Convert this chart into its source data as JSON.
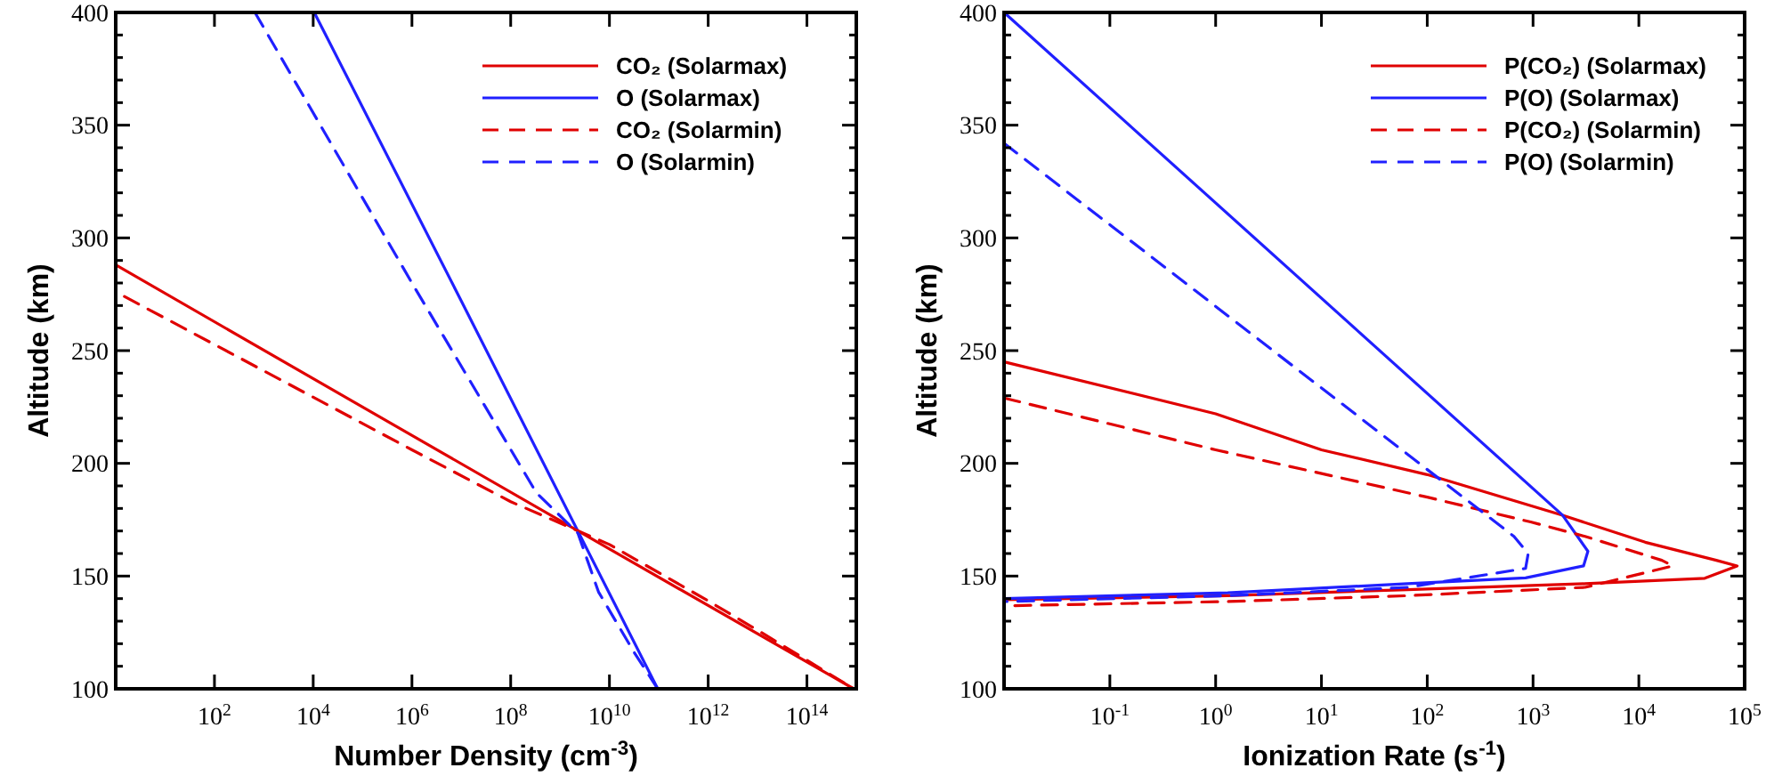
{
  "chart_data": [
    {
      "type": "line",
      "xlabel": "Number Density (cm$^{-3}$)",
      "ylabel": "Altitude (km)",
      "log": "x",
      "legend": "top right",
      "grid": false,
      "xlim": [
        1,
        1000000000000000.0
      ],
      "ylim": [
        100,
        400
      ],
      "xticks": [
        {
          "value": 100,
          "label": "10$^{2}$"
        },
        {
          "value": 10000,
          "label": "10$^{4}$"
        },
        {
          "value": 1000000,
          "label": "10$^{6}$"
        },
        {
          "value": 100000000,
          "label": "10$^{8}$"
        },
        {
          "value": 10000000000,
          "label": "10$^{10}$"
        },
        {
          "value": 1000000000000,
          "label": "10$^{12}$"
        },
        {
          "value": 100000000000000,
          "label": "10$^{14}$"
        }
      ],
      "yticks": [
        100,
        {
          "value": 110,
          "label": null
        },
        {
          "value": 120,
          "label": null
        },
        {
          "value": 130,
          "label": null
        },
        {
          "value": 140,
          "label": null
        },
        150,
        {
          "value": 160,
          "label": null
        },
        {
          "value": 170,
          "label": null
        },
        {
          "value": 180,
          "label": null
        },
        {
          "value": 190,
          "label": null
        },
        200,
        {
          "value": 210,
          "label": null
        },
        {
          "value": 220,
          "label": null
        },
        {
          "value": 230,
          "label": null
        },
        {
          "value": 240,
          "label": null
        },
        250,
        {
          "value": 260,
          "label": null
        },
        {
          "value": 270,
          "label": null
        },
        {
          "value": 280,
          "label": null
        },
        {
          "value": 290,
          "label": null
        },
        300,
        {
          "value": 310,
          "label": null
        },
        {
          "value": 320,
          "label": null
        },
        {
          "value": 330,
          "label": null
        },
        {
          "value": 340,
          "label": null
        },
        350,
        {
          "value": 360,
          "label": null
        },
        {
          "value": 370,
          "label": null
        },
        {
          "value": 380,
          "label": null
        },
        {
          "value": 390,
          "label": null
        },
        400
      ],
      "series": [
        {
          "name": "CO₂ (Solarmax)",
          "color": "#e00000",
          "line_style": "solid",
          "x": [
            1,
            100000,
            10000000000,
            890000000000000
          ],
          "values": [
            288,
            225,
            162,
            100
          ]
        },
        {
          "name": "O (Solarmax)",
          "color": "#2020ff",
          "line_style": "solid",
          "x": [
            10500,
            10000000,
            95000000000
          ],
          "values": [
            400,
            272,
            100
          ]
        },
        {
          "name": "CO₂ (Solarmin)",
          "color": "#e00000",
          "line_style": "dashed",
          "x": [
            1.5,
            1000000,
            100000000,
            10000000000,
            1000000000000,
            10000000000000,
            890000000000000
          ],
          "values": [
            274,
            206,
            183,
            164,
            139,
            126,
            100
          ]
        },
        {
          "name": "O (Solarmin)",
          "color": "#2020ff",
          "line_style": "dashed",
          "x": [
            660,
            1000000,
            330000000,
            2300000000,
            6000000000,
            32000000000,
            95000000000
          ],
          "values": [
            400,
            280,
            187,
            169,
            143,
            116,
            100
          ]
        }
      ]
    },
    {
      "type": "line",
      "xlabel": "Ionization Rate (s$^{-1}$)",
      "ylabel": "Altitude (km)",
      "log": "x",
      "legend": "top right",
      "grid": false,
      "xlim": [
        0.01,
        100000
      ],
      "ylim": [
        100,
        400
      ],
      "xticks": [
        {
          "value": 0.1,
          "label": "10$^{-1}$"
        },
        {
          "value": 1,
          "label": "10$^{0}$"
        },
        {
          "value": 10,
          "label": "10$^{1}$"
        },
        {
          "value": 100,
          "label": "10$^{2}$"
        },
        {
          "value": 1000,
          "label": "10$^{3}$"
        },
        {
          "value": 10000,
          "label": "10$^{4}$"
        },
        {
          "value": 100000,
          "label": "10$^{5}$"
        }
      ],
      "yticks": [
        100,
        {
          "value": 110,
          "label": null
        },
        {
          "value": 120,
          "label": null
        },
        {
          "value": 130,
          "label": null
        },
        {
          "value": 140,
          "label": null
        },
        150,
        {
          "value": 160,
          "label": null
        },
        {
          "value": 170,
          "label": null
        },
        {
          "value": 180,
          "label": null
        },
        {
          "value": 190,
          "label": null
        },
        200,
        {
          "value": 210,
          "label": null
        },
        {
          "value": 220,
          "label": null
        },
        {
          "value": 230,
          "label": null
        },
        {
          "value": 240,
          "label": null
        },
        250,
        {
          "value": 260,
          "label": null
        },
        {
          "value": 270,
          "label": null
        },
        {
          "value": 280,
          "label": null
        },
        {
          "value": 290,
          "label": null
        },
        300,
        {
          "value": 310,
          "label": null
        },
        {
          "value": 320,
          "label": null
        },
        {
          "value": 330,
          "label": null
        },
        {
          "value": 340,
          "label": null
        },
        350,
        {
          "value": 360,
          "label": null
        },
        {
          "value": 370,
          "label": null
        },
        {
          "value": 380,
          "label": null
        },
        {
          "value": 390,
          "label": null
        },
        400
      ],
      "series": [
        {
          "name": "P(CO₂) (Solarmax)",
          "color": "#e00000",
          "line_style": "solid",
          "x": [
            0.01,
            1,
            10,
            100,
            1900,
            11500,
            54000,
            85000,
            42000,
            3100,
            65,
            1.3,
            0.01
          ],
          "values": [
            245,
            222,
            206,
            195,
            177,
            165,
            157,
            154.5,
            149,
            146.6,
            144,
            141.3,
            139.5
          ]
        },
        {
          "name": "P(O) (Solarmax)",
          "color": "#2020ff",
          "line_style": "solid",
          "x": [
            0.01,
            1900,
            3300,
            3000,
            850,
            65,
            1.3,
            0.01
          ],
          "values": [
            400,
            177,
            161,
            154.5,
            149.2,
            146.6,
            142.6,
            140
          ]
        },
        {
          "name": "P(CO₂) (Solarmin)",
          "color": "#e00000",
          "line_style": "dashed",
          "x": [
            0.01,
            1,
            100,
            950,
            3100,
            16500,
            21000,
            3100,
            65,
            1.3,
            0.01
          ],
          "values": [
            229,
            206,
            185,
            174,
            167.6,
            157,
            154.5,
            145,
            141.3,
            138.7,
            136.8
          ]
        },
        {
          "name": "P(O) (Solarmin)",
          "color": "#2020ff",
          "line_style": "dashed",
          "x": [
            0.01,
            660,
            900,
            850,
            65,
            1.3,
            0.01
          ],
          "values": [
            342,
            167.6,
            160,
            153.4,
            145,
            141.3,
            138.7
          ]
        }
      ]
    }
  ]
}
